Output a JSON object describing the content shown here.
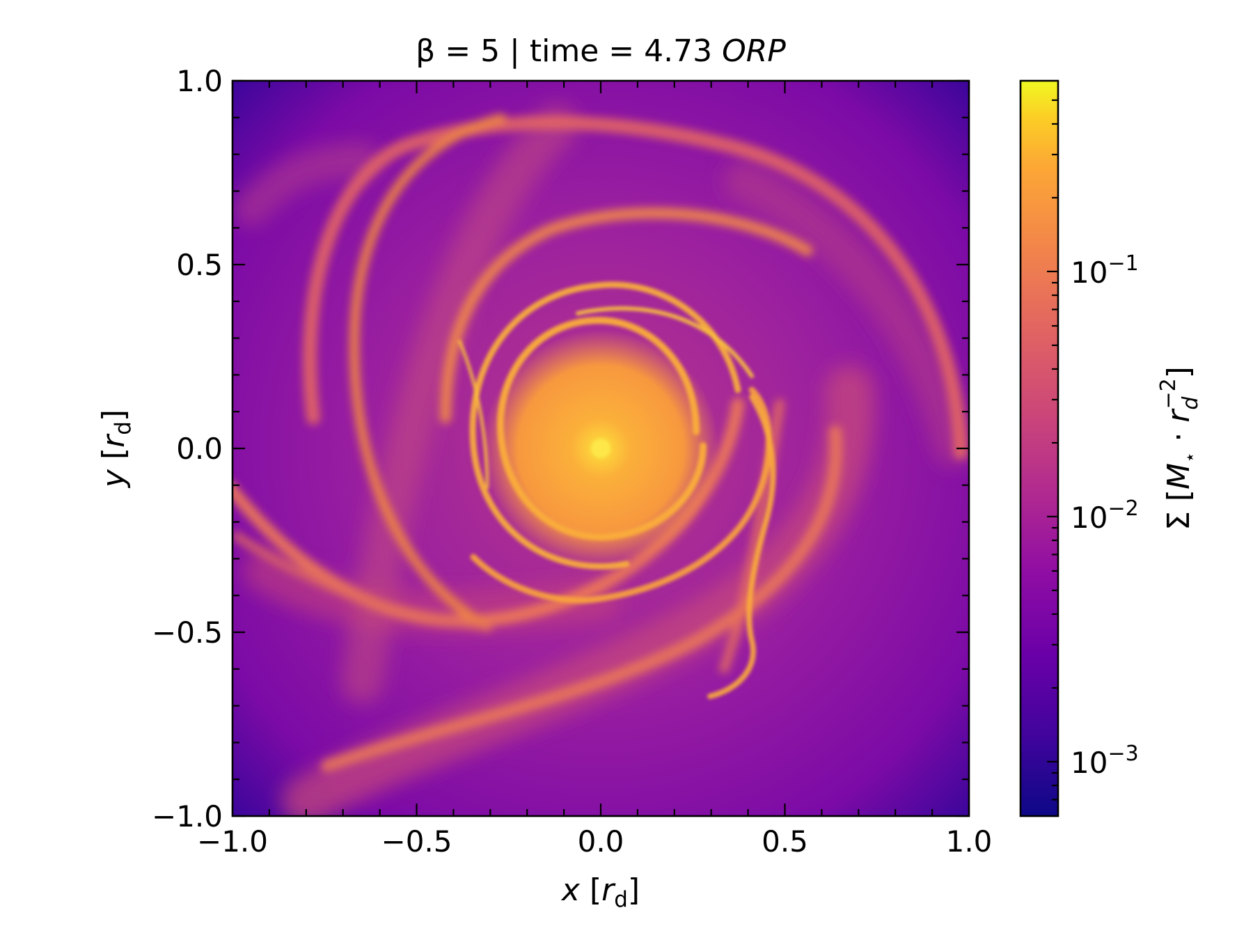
{
  "chart_data": {
    "type": "heatmap",
    "title": {
      "prefix": "β = 5 | time = 4.73 ",
      "unit": "ORP"
    },
    "xlabel": {
      "var": "x",
      "open": " [",
      "r": "r",
      "sub": "d",
      "close": "]"
    },
    "ylabel": {
      "var": "y",
      "open": " [",
      "r": "r",
      "sub": "d",
      "close": "]"
    },
    "xlim": [
      -1.0,
      1.0
    ],
    "ylim": [
      -1.0,
      1.0
    ],
    "xticks": [
      -1.0,
      -0.5,
      0.0,
      0.5,
      1.0
    ],
    "yticks": [
      -1.0,
      -0.5,
      0.0,
      0.5,
      1.0
    ],
    "xtick_labels": [
      "−1.0",
      "−0.5",
      "0.0",
      "0.5",
      "1.0"
    ],
    "ytick_labels": [
      "−1.0",
      "−0.5",
      "0.0",
      "0.5",
      "1.0"
    ],
    "colorbar": {
      "scale": "log",
      "range": [
        0.0006,
        0.6
      ],
      "ticks": [
        0.001,
        0.01,
        0.1
      ],
      "tick_labels": [
        {
          "base": "10",
          "exp": "−3"
        },
        {
          "base": "10",
          "exp": "−2"
        },
        {
          "base": "10",
          "exp": "−1"
        }
      ],
      "label": {
        "sigma": "Σ [",
        "M": "M",
        "star": "⋆",
        "dot": " · ",
        "r": "r",
        "d": "d",
        "exp": "−2",
        "close": "]"
      },
      "colormap": "plasma"
    },
    "features": "spiral density structure around a bright central peak at (0,0)"
  },
  "colors": {
    "low": "#2a0594",
    "mid": "#a01a9c",
    "high": "#f89441",
    "peak": "#f0f921"
  }
}
